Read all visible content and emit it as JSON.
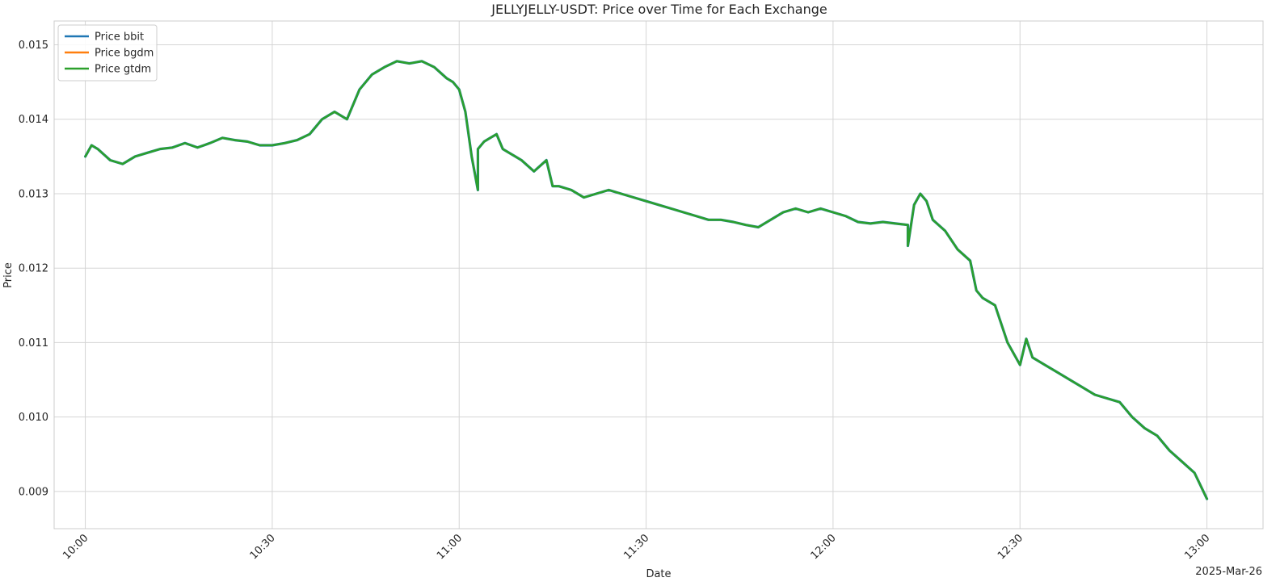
{
  "chart_data": {
    "type": "line",
    "title": "JELLYJELLY-USDT: Price over Time for Each Exchange",
    "xlabel": "Date",
    "ylabel": "Price",
    "date_label": "2025-Mar-26",
    "x_ticks": [
      "10:00",
      "10:30",
      "11:00",
      "11:30",
      "12:00",
      "12:30",
      "13:00"
    ],
    "y_ticks": [
      "0.009",
      "0.010",
      "0.011",
      "0.012",
      "0.013",
      "0.014",
      "0.015"
    ],
    "xlim": [
      "09:55",
      "13:09"
    ],
    "ylim": [
      0.0085,
      0.01532
    ],
    "grid": true,
    "legend_position": "top-left",
    "series": [
      {
        "name": "Price bbit",
        "color": "#1f77b4"
      },
      {
        "name": "Price bgdm",
        "color": "#ff7f0e"
      },
      {
        "name": "Price gtdm",
        "color": "#2ca02c"
      }
    ],
    "x": [
      "10:00",
      "10:01",
      "10:02",
      "10:04",
      "10:06",
      "10:08",
      "10:10",
      "10:12",
      "10:14",
      "10:16",
      "10:18",
      "10:20",
      "10:22",
      "10:24",
      "10:26",
      "10:28",
      "10:30",
      "10:32",
      "10:34",
      "10:36",
      "10:38",
      "10:40",
      "10:42",
      "10:44",
      "10:46",
      "10:48",
      "10:50",
      "10:52",
      "10:54",
      "10:56",
      "10:58",
      "10:59",
      "11:00",
      "11:01",
      "11:02",
      "11:03",
      "11:03",
      "11:04",
      "11:05",
      "11:06",
      "11:07",
      "11:08",
      "11:10",
      "11:12",
      "11:14",
      "11:15",
      "11:16",
      "11:18",
      "11:20",
      "11:22",
      "11:24",
      "11:26",
      "11:28",
      "11:30",
      "11:32",
      "11:34",
      "11:36",
      "11:38",
      "11:40",
      "11:42",
      "11:44",
      "11:46",
      "11:48",
      "11:50",
      "11:52",
      "11:54",
      "11:56",
      "11:58",
      "12:00",
      "12:02",
      "12:04",
      "12:06",
      "12:08",
      "12:10",
      "12:12",
      "12:12",
      "12:13",
      "12:14",
      "12:15",
      "12:16",
      "12:18",
      "12:20",
      "12:22",
      "12:23",
      "12:24",
      "12:26",
      "12:28",
      "12:30",
      "12:31",
      "12:32",
      "12:34",
      "12:36",
      "12:38",
      "12:40",
      "12:42",
      "12:44",
      "12:46",
      "12:48",
      "12:50",
      "12:52",
      "12:54",
      "12:56",
      "12:58",
      "13:00"
    ],
    "values": [
      0.0135,
      0.01365,
      0.0136,
      0.01345,
      0.0134,
      0.0135,
      0.01355,
      0.0136,
      0.01362,
      0.01368,
      0.01362,
      0.01368,
      0.01375,
      0.01372,
      0.0137,
      0.01365,
      0.01365,
      0.01368,
      0.01372,
      0.0138,
      0.014,
      0.0141,
      0.014,
      0.0144,
      0.0146,
      0.0147,
      0.01478,
      0.01475,
      0.01478,
      0.0147,
      0.01455,
      0.0145,
      0.0144,
      0.0141,
      0.0135,
      0.01305,
      0.0136,
      0.0137,
      0.01375,
      0.0138,
      0.0136,
      0.01355,
      0.01345,
      0.0133,
      0.01345,
      0.0131,
      0.0131,
      0.01305,
      0.01295,
      0.013,
      0.01305,
      0.013,
      0.01295,
      0.0129,
      0.01285,
      0.0128,
      0.01275,
      0.0127,
      0.01265,
      0.01265,
      0.01262,
      0.01258,
      0.01255,
      0.01265,
      0.01275,
      0.0128,
      0.01275,
      0.0128,
      0.01275,
      0.0127,
      0.01262,
      0.0126,
      0.01262,
      0.0126,
      0.01258,
      0.0123,
      0.01285,
      0.013,
      0.0129,
      0.01265,
      0.0125,
      0.01225,
      0.0121,
      0.0117,
      0.0116,
      0.0115,
      0.011,
      0.0107,
      0.01105,
      0.0108,
      0.0107,
      0.0106,
      0.0105,
      0.0104,
      0.0103,
      0.01025,
      0.0102,
      0.01,
      0.00985,
      0.00975,
      0.00955,
      0.0094,
      0.00925,
      0.0089
    ]
  }
}
